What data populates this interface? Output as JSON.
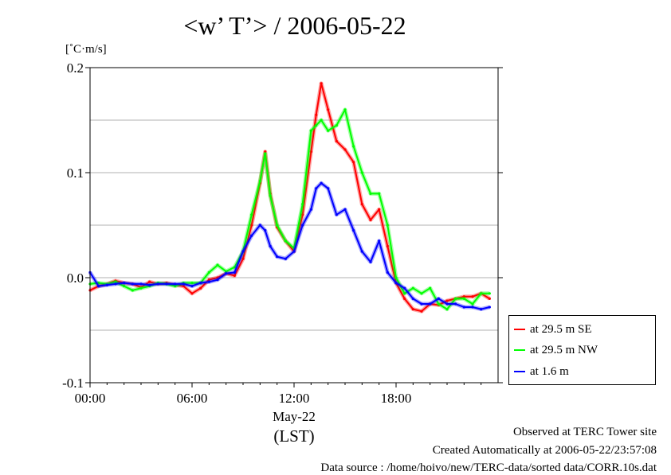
{
  "chart_data": {
    "type": "line",
    "title": "<w’ T’> / 2006-05-22",
    "ylabel": "[˚C·m/s]",
    "xlabel": "(LST)",
    "date_label": "May-22",
    "ylim": [
      -0.1,
      0.2
    ],
    "xlim_hours": [
      0,
      24
    ],
    "x_ticks": [
      "00:00",
      "06:00",
      "12:00",
      "18:00"
    ],
    "y_ticks": [
      "-0.1",
      "0.0",
      "0.1",
      "0.2"
    ],
    "grid": true,
    "legend_position": "lower-right-outside",
    "x": [
      0,
      0.5,
      1,
      1.5,
      2,
      2.5,
      3,
      3.5,
      4,
      4.5,
      5,
      5.5,
      6,
      6.5,
      7,
      7.5,
      8,
      8.5,
      9,
      9.5,
      10,
      10.3,
      10.6,
      11,
      11.5,
      12,
      12.5,
      13,
      13.3,
      13.6,
      14,
      14.5,
      15,
      15.5,
      16,
      16.5,
      17,
      17.5,
      18,
      18.5,
      19,
      19.5,
      20,
      20.5,
      21,
      21.5,
      22,
      22.5,
      23,
      23.5
    ],
    "series": [
      {
        "name": "at 29.5 m SE",
        "color": "#ff0000",
        "values": [
          -0.012,
          -0.008,
          -0.006,
          -0.003,
          -0.005,
          -0.006,
          -0.009,
          -0.004,
          -0.006,
          -0.005,
          -0.007,
          -0.008,
          -0.015,
          -0.01,
          -0.002,
          0.0,
          0.004,
          0.002,
          0.018,
          0.05,
          0.09,
          0.12,
          0.08,
          0.048,
          0.035,
          0.025,
          0.06,
          0.12,
          0.155,
          0.185,
          0.16,
          0.13,
          0.122,
          0.11,
          0.07,
          0.055,
          0.065,
          0.03,
          -0.005,
          -0.02,
          -0.03,
          -0.032,
          -0.025,
          -0.026,
          -0.022,
          -0.02,
          -0.018,
          -0.018,
          -0.015,
          -0.02
        ]
      },
      {
        "name": "at 29.5 m NW",
        "color": "#00ff00",
        "values": [
          -0.006,
          -0.005,
          -0.006,
          -0.004,
          -0.008,
          -0.012,
          -0.01,
          -0.008,
          -0.005,
          -0.006,
          -0.008,
          -0.005,
          -0.005,
          -0.005,
          0.005,
          0.012,
          0.006,
          0.01,
          0.025,
          0.06,
          0.092,
          0.118,
          0.078,
          0.05,
          0.035,
          0.028,
          0.07,
          0.14,
          0.145,
          0.15,
          0.14,
          0.145,
          0.16,
          0.125,
          0.1,
          0.08,
          0.08,
          0.05,
          0.0,
          -0.015,
          -0.01,
          -0.015,
          -0.01,
          -0.025,
          -0.03,
          -0.02,
          -0.02,
          -0.025,
          -0.015,
          -0.015
        ]
      },
      {
        "name": "at 1.6 m",
        "color": "#0000ff",
        "values": [
          0.005,
          -0.008,
          -0.007,
          -0.006,
          -0.005,
          -0.006,
          -0.006,
          -0.007,
          -0.006,
          -0.006,
          -0.006,
          -0.006,
          -0.008,
          -0.005,
          -0.004,
          -0.002,
          0.004,
          0.005,
          0.025,
          0.04,
          0.05,
          0.045,
          0.03,
          0.02,
          0.018,
          0.025,
          0.05,
          0.065,
          0.085,
          0.09,
          0.085,
          0.06,
          0.065,
          0.045,
          0.025,
          0.015,
          0.035,
          0.005,
          -0.005,
          -0.01,
          -0.02,
          -0.025,
          -0.025,
          -0.02,
          -0.025,
          -0.025,
          -0.028,
          -0.028,
          -0.03,
          -0.028
        ]
      }
    ]
  },
  "footer": {
    "site": "Observed at TERC Tower site",
    "created": "Created Automatically at 2006-05-22/23:57:08",
    "source": "Data source : /home/hoivo/new/TERC-data/sorted data/CORR.10s.dat"
  }
}
